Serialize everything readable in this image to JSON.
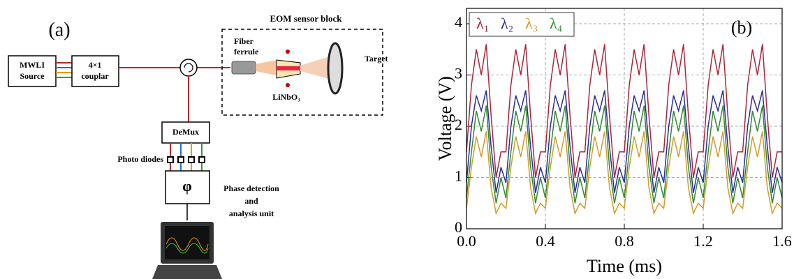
{
  "diagram": {
    "label": "(a)",
    "eom_block": "EOM sensor block",
    "source": [
      "MWLI",
      "Source"
    ],
    "coupler": [
      "4×1",
      "couplar"
    ],
    "fiber": [
      "Fiber",
      "ferrule"
    ],
    "target": "Target",
    "crystal": "LiNbO₃",
    "demux": "DeMux",
    "diodes": "Photo diodes",
    "phi": "φ",
    "phase": [
      "Phase detection",
      "and",
      "analysis unit"
    ]
  },
  "chart_data": {
    "type": "line",
    "annotation": "(b)",
    "xlabel": "Time (ms)",
    "ylabel": "Voltage (V)",
    "xlim": [
      0,
      1.6
    ],
    "ylim": [
      0,
      4.3
    ],
    "xticks": [
      {
        "value": 0,
        "label": "0.0"
      },
      0.4,
      0.8,
      1.2,
      1.6
    ],
    "yticks": [
      0,
      1,
      2,
      3,
      4
    ],
    "grid": true,
    "legend": "upper left",
    "x": [
      0,
      0.025,
      0.05,
      0.075,
      0.1,
      0.125,
      0.15,
      0.175,
      0.2,
      0.225,
      0.25,
      0.275,
      0.3,
      0.325,
      0.35,
      0.375,
      0.4,
      0.425,
      0.45,
      0.475,
      0.5,
      0.525,
      0.55,
      0.575,
      0.6,
      0.625,
      0.65,
      0.675,
      0.7,
      0.725,
      0.75,
      0.775,
      0.8,
      0.825,
      0.85,
      0.875,
      0.9,
      0.925,
      0.95,
      0.975,
      1.0,
      1.025,
      1.05,
      1.075,
      1.1,
      1.125,
      1.15,
      1.175,
      1.2,
      1.225,
      1.25,
      1.275,
      1.3,
      1.325,
      1.35,
      1.375,
      1.4,
      1.425,
      1.45,
      1.475,
      1.5,
      1.525,
      1.55,
      1.575,
      1.6
    ],
    "series": [
      {
        "name": "λ₁",
        "color": "#b22234",
        "values": [
          1.5,
          2.8,
          3.5,
          3.0,
          3.6,
          2.2,
          1.0,
          1.5,
          1.5,
          2.8,
          3.5,
          3.0,
          3.6,
          2.2,
          1.0,
          1.5,
          1.5,
          2.8,
          3.5,
          3.0,
          3.6,
          2.2,
          1.0,
          1.5,
          1.5,
          2.8,
          3.5,
          3.0,
          3.6,
          2.2,
          1.0,
          1.5,
          1.5,
          2.8,
          3.5,
          3.0,
          3.6,
          2.2,
          1.0,
          1.5,
          1.5,
          2.8,
          3.5,
          3.0,
          3.6,
          2.2,
          1.0,
          1.5,
          1.5,
          2.8,
          3.5,
          3.0,
          3.6,
          2.2,
          1.0,
          1.5,
          1.5,
          2.8,
          3.5,
          3.0,
          3.6,
          2.2,
          1.0,
          1.5,
          1.5
        ]
      },
      {
        "name": "λ₂",
        "color": "#2b2b9a",
        "values": [
          0.9,
          2.0,
          2.6,
          2.3,
          2.7,
          1.6,
          0.7,
          1.2,
          0.9,
          2.0,
          2.6,
          2.3,
          2.7,
          1.6,
          0.7,
          1.2,
          0.9,
          2.0,
          2.6,
          2.3,
          2.7,
          1.6,
          0.7,
          1.2,
          0.9,
          2.0,
          2.6,
          2.3,
          2.7,
          1.6,
          0.7,
          1.2,
          0.9,
          2.0,
          2.6,
          2.3,
          2.7,
          1.6,
          0.7,
          1.2,
          0.9,
          2.0,
          2.6,
          2.3,
          2.7,
          1.6,
          0.7,
          1.2,
          0.9,
          2.0,
          2.6,
          2.3,
          2.7,
          1.6,
          0.7,
          1.2,
          0.9,
          2.0,
          2.6,
          2.3,
          2.7,
          1.6,
          0.7,
          1.2,
          0.9
        ]
      },
      {
        "name": "λ₃",
        "color": "#d49a2a",
        "values": [
          0.4,
          1.2,
          1.8,
          1.4,
          1.9,
          0.8,
          0.3,
          0.5,
          0.4,
          1.2,
          1.8,
          1.4,
          1.9,
          0.8,
          0.3,
          0.5,
          0.4,
          1.2,
          1.8,
          1.4,
          1.9,
          0.8,
          0.3,
          0.5,
          0.4,
          1.2,
          1.8,
          1.4,
          1.9,
          0.8,
          0.3,
          0.5,
          0.4,
          1.2,
          1.8,
          1.4,
          1.9,
          0.8,
          0.3,
          0.5,
          0.4,
          1.2,
          1.8,
          1.4,
          1.9,
          0.8,
          0.3,
          0.5,
          0.4,
          1.2,
          1.8,
          1.4,
          1.9,
          0.8,
          0.3,
          0.5,
          0.4,
          1.2,
          1.8,
          1.4,
          1.9,
          0.8,
          0.3,
          0.5,
          0.4
        ]
      },
      {
        "name": "λ₄",
        "color": "#2e8b2e",
        "values": [
          0.6,
          1.5,
          2.3,
          1.9,
          2.4,
          1.2,
          0.5,
          1.0,
          0.6,
          1.5,
          2.3,
          1.9,
          2.4,
          1.2,
          0.5,
          1.0,
          0.6,
          1.5,
          2.3,
          1.9,
          2.4,
          1.2,
          0.5,
          1.0,
          0.6,
          1.5,
          2.3,
          1.9,
          2.4,
          1.2,
          0.5,
          1.0,
          0.6,
          1.5,
          2.3,
          1.9,
          2.4,
          1.2,
          0.5,
          1.0,
          0.6,
          1.5,
          2.3,
          1.9,
          2.4,
          1.2,
          0.5,
          1.0,
          0.6,
          1.5,
          2.3,
          1.9,
          2.4,
          1.2,
          0.5,
          1.0,
          0.6,
          1.5,
          2.3,
          1.9,
          2.4,
          1.2,
          0.5,
          1.0,
          0.6
        ]
      }
    ]
  }
}
